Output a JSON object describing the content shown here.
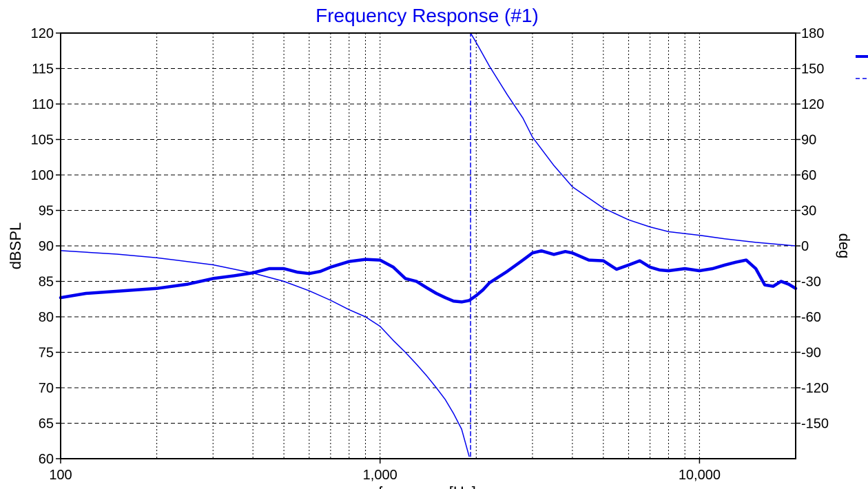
{
  "chart_data": {
    "type": "line",
    "title": "Frequency Response (#1)",
    "xlabel": "frequency [Hz]",
    "ylabel": "dBSPL",
    "y2label": "deg",
    "x_scale": "log",
    "xlim": [
      100,
      20000
    ],
    "ylim": [
      60,
      120
    ],
    "y2lim": [
      -180,
      180
    ],
    "x_ticks": [
      100,
      1000,
      10000
    ],
    "x_tick_labels": [
      "100",
      "1,000",
      "10,000"
    ],
    "y_ticks": [
      "120",
      "115",
      "110",
      "105",
      "100",
      "95",
      "90",
      "85",
      "80",
      "75",
      "70",
      "65",
      "60"
    ],
    "y2_ticks": [
      "180",
      "150",
      "120",
      "90",
      "60",
      "30",
      "0",
      "-30",
      "-60",
      "-90",
      "-120",
      "-150"
    ],
    "grid": true,
    "colors": {
      "magnitude": "#0000ee",
      "phase": "#0000ee",
      "title": "#0000ee",
      "grid": "#000000"
    },
    "series": [
      {
        "axis": "left",
        "style": "solid-thick",
        "x": [
          100,
          120,
          150,
          200,
          250,
          300,
          350,
          400,
          450,
          500,
          550,
          600,
          650,
          700,
          800,
          900,
          1000,
          1100,
          1200,
          1300,
          1400,
          1500,
          1600,
          1700,
          1800,
          1900,
          2000,
          2100,
          2200,
          2500,
          2800,
          3000,
          3200,
          3500,
          3800,
          4000,
          4500,
          5000,
          5500,
          6000,
          6500,
          7000,
          7500,
          8000,
          9000,
          10000,
          11000,
          12000,
          13000,
          14000,
          15000,
          16000,
          17000,
          18000,
          19000,
          20000
        ],
        "values": [
          82.7,
          83.3,
          83.6,
          84.0,
          84.6,
          85.4,
          85.8,
          86.2,
          86.8,
          86.8,
          86.3,
          86.1,
          86.4,
          87.0,
          87.8,
          88.1,
          88.0,
          87.0,
          85.4,
          85.0,
          84.1,
          83.3,
          82.7,
          82.2,
          82.1,
          82.3,
          83.0,
          83.8,
          84.8,
          86.4,
          88.0,
          89.0,
          89.3,
          88.8,
          89.2,
          89.0,
          88.0,
          87.9,
          86.7,
          87.3,
          87.9,
          87.0,
          86.6,
          86.5,
          86.8,
          86.5,
          86.8,
          87.3,
          87.7,
          88.0,
          86.8,
          84.5,
          84.3,
          85.0,
          84.6,
          84.0
        ]
      },
      {
        "axis": "right",
        "style": "solid-thin",
        "x": [
          100,
          150,
          200,
          300,
          400,
          500,
          600,
          700,
          800,
          900,
          1000,
          1100,
          1200,
          1300,
          1400,
          1500,
          1600,
          1700,
          1800,
          1900,
          1920,
          2000,
          2200,
          2500,
          2800,
          3000,
          3500,
          4000,
          5000,
          6000,
          7000,
          8000,
          10000,
          12000,
          15000,
          20000
        ],
        "values": [
          -4,
          -7,
          -10,
          -16,
          -23,
          -30,
          -38,
          -46,
          -54,
          -60,
          -68,
          -80,
          -90,
          -100,
          -110,
          -120,
          -130,
          -142,
          -155,
          -178,
          180,
          172,
          152,
          128,
          108,
          92,
          68,
          50,
          32,
          22,
          16,
          12,
          9,
          6,
          3,
          0
        ]
      },
      {
        "axis": "right",
        "style": "dashed-thin",
        "x": [
          1920,
          1920
        ],
        "values": [
          -178,
          180
        ]
      }
    ]
  }
}
